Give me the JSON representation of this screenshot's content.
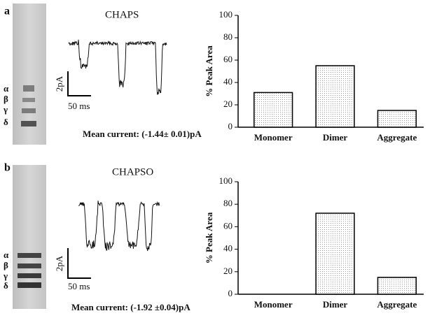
{
  "panels": [
    {
      "label": "a",
      "detergent": "CHAPS",
      "scale_current": "2pA",
      "scale_time": "50 ms",
      "mean_current": "Mean current: (-1.44± 0.01)pA",
      "subunits": [
        "α",
        "β",
        "γ",
        "δ"
      ]
    },
    {
      "label": "b",
      "detergent": "CHAPSO",
      "scale_current": "2pA",
      "scale_time": "50 ms",
      "mean_current": "Mean current: (-1.92 ±0.04)pA",
      "subunits": [
        "α",
        "β",
        "γ",
        "δ"
      ]
    }
  ],
  "chart_data": [
    {
      "type": "bar",
      "ylabel": "% Peak Area",
      "categories": [
        "Monomer",
        "Dimer",
        "Aggregate"
      ],
      "values": [
        31,
        55,
        15
      ],
      "color": "#9a9a9a",
      "ylim": [
        0,
        100
      ],
      "yticks": [
        0,
        20,
        40,
        60,
        80,
        100
      ],
      "grid": false
    },
    {
      "type": "bar",
      "ylabel": "% Peak Area",
      "categories": [
        "Monomer",
        "Dimer",
        "Aggregate"
      ],
      "values": [
        0,
        72,
        15
      ],
      "color": "#9a9a9a",
      "ylim": [
        0,
        100
      ],
      "yticks": [
        0,
        20,
        40,
        60,
        80,
        100
      ],
      "grid": false
    }
  ]
}
